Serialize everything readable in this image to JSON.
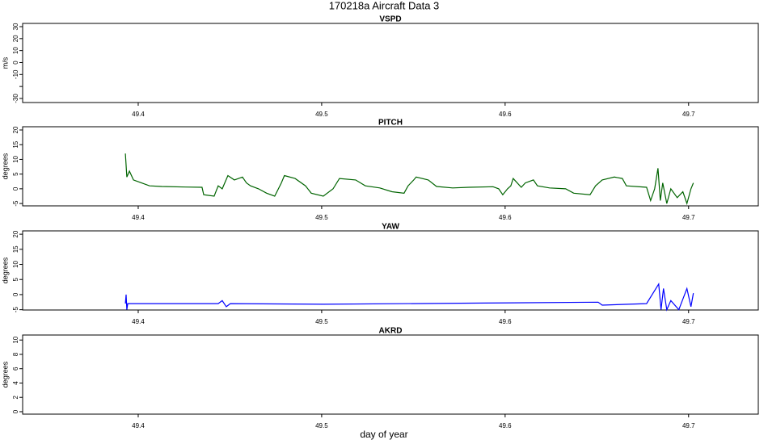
{
  "title": "170218a   Aircraft Data 3",
  "xlabel": "day of year",
  "chart_data": [
    {
      "type": "line",
      "title": "VSPD",
      "ylabel": "m/s",
      "xlim": [
        49.337,
        49.738
      ],
      "xticks": [
        49.4,
        49.5,
        49.6,
        49.7
      ],
      "ylim": [
        -33.4,
        32.7
      ],
      "yticks": [
        -30,
        {
          "value": -20,
          "label": null
        },
        -10,
        0,
        10,
        20,
        30
      ],
      "x": [],
      "series": []
    },
    {
      "type": "line",
      "title": "PITCH",
      "ylabel": "degrees",
      "xlim": [
        49.337,
        49.738
      ],
      "xticks": [
        49.4,
        49.5,
        49.6,
        49.7
      ],
      "ylim": [
        -5.8,
        21.1
      ],
      "yticks": [
        -5,
        0,
        5,
        10,
        15,
        20
      ],
      "x": [
        49.393,
        49.3938,
        49.3952,
        49.3974,
        49.4018,
        49.4062,
        49.4128,
        49.426,
        49.4348,
        49.4357,
        49.4414,
        49.4436,
        49.4458,
        49.4489,
        49.4524,
        49.4568,
        49.459,
        49.4612,
        49.4656,
        49.47,
        49.4744,
        49.478,
        49.4797,
        49.4855,
        49.4912,
        49.4943,
        49.5009,
        49.5062,
        49.5097,
        49.5185,
        49.5238,
        49.5317,
        49.5383,
        49.5449,
        49.5471,
        49.5502,
        49.5515,
        49.5581,
        49.5626,
        49.5714,
        49.5802,
        49.5934,
        49.5965,
        49.5987,
        49.6013,
        49.6031,
        49.6044,
        49.6088,
        49.611,
        49.6154,
        49.6176,
        49.6242,
        49.633,
        49.6374,
        49.6463,
        49.6493,
        49.6529,
        49.6595,
        49.6639,
        49.6661,
        49.6771,
        49.6793,
        49.6815,
        49.6833,
        49.6846,
        49.6859,
        49.6881,
        49.6903,
        49.6938,
        49.6969,
        49.6991,
        49.7013,
        49.7026
      ],
      "series": [
        {
          "color": "#006400",
          "values": [
            12,
            4,
            6,
            3,
            2,
            1,
            0.8,
            0.6,
            0.5,
            -2,
            -2.5,
            1,
            0,
            4.5,
            3,
            4,
            2,
            1,
            0,
            -1.5,
            -2.5,
            2,
            4.5,
            3.5,
            1,
            -1.5,
            -2.5,
            0,
            3.5,
            3,
            1,
            0.3,
            -1,
            -1.5,
            1,
            3,
            4,
            3,
            0.8,
            0.3,
            0.5,
            0.7,
            0,
            -2,
            0,
            1,
            3.5,
            0.5,
            2,
            3,
            1,
            0.3,
            0,
            -1.5,
            -2,
            1,
            3,
            4,
            3.5,
            1,
            0.5,
            -4,
            0,
            7,
            -4,
            2,
            -5,
            0,
            -3,
            -1,
            -5,
            0,
            2
          ]
        }
      ]
    },
    {
      "type": "line",
      "title": "YAW",
      "ylabel": "degrees",
      "xlim": [
        49.337,
        49.738
      ],
      "xticks": [
        49.4,
        49.5,
        49.6,
        49.7
      ],
      "ylim": [
        -5.1,
        21.1
      ],
      "yticks": [
        -5,
        0,
        5,
        10,
        15,
        20
      ],
      "x": [
        49.393,
        49.3934,
        49.3938,
        49.3943,
        49.4128,
        49.4436,
        49.4458,
        49.448,
        49.4502,
        49.5009,
        49.589,
        49.6507,
        49.6529,
        49.6771,
        49.6837,
        49.685,
        49.6863,
        49.6881,
        49.6903,
        49.6947,
        49.6991,
        49.7013,
        49.7026
      ],
      "series": [
        {
          "color": "#0000ff",
          "values": [
            -3,
            0,
            -5,
            -3,
            -3,
            -3,
            -2,
            -4,
            -3,
            -3.2,
            -2.8,
            -2.5,
            -3.5,
            -3,
            3.5,
            -5,
            2,
            -5,
            -2,
            -5,
            2,
            -4,
            0.5
          ]
        }
      ]
    },
    {
      "type": "line",
      "title": "AKRD",
      "ylabel": "degrees",
      "xlim": [
        49.337,
        49.738
      ],
      "xticks": [
        49.4,
        49.5,
        49.6,
        49.7
      ],
      "ylim": [
        -0.34,
        10.7
      ],
      "yticks": [
        0,
        2,
        4,
        6,
        8,
        10
      ],
      "x": [],
      "series": []
    }
  ]
}
